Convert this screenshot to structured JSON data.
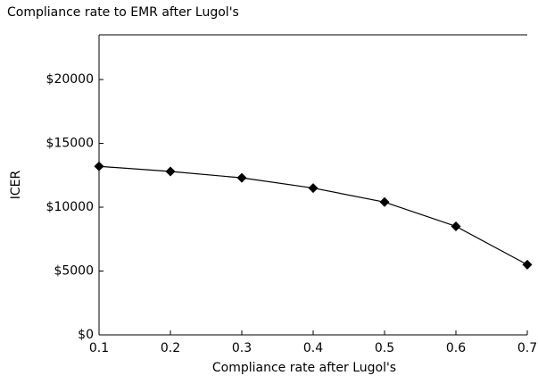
{
  "chart_data": {
    "type": "line",
    "title": "Compliance rate to EMR after Lugol's",
    "xlabel": "Compliance rate after Lugol's",
    "ylabel": "ICER",
    "x": [
      0.1,
      0.2,
      0.3,
      0.4,
      0.5,
      0.6,
      0.7
    ],
    "series": [
      {
        "name": "ICER",
        "color": "#000000",
        "values": [
          13200,
          12800,
          12300,
          11500,
          10400,
          8500,
          5500
        ]
      }
    ],
    "xlim": [
      0.1,
      0.7
    ],
    "xticks": [
      0.1,
      0.2,
      0.3,
      0.4,
      0.5,
      0.6,
      0.7
    ],
    "ylim": [
      0,
      23500
    ],
    "yticks": [
      {
        "value": 0,
        "label": "$0"
      },
      {
        "value": 5000,
        "label": "$5000"
      },
      {
        "value": 10000,
        "label": "$10000"
      },
      {
        "value": 15000,
        "label": "$15000"
      },
      {
        "value": 20000,
        "label": "$20000"
      }
    ],
    "grid": false
  }
}
